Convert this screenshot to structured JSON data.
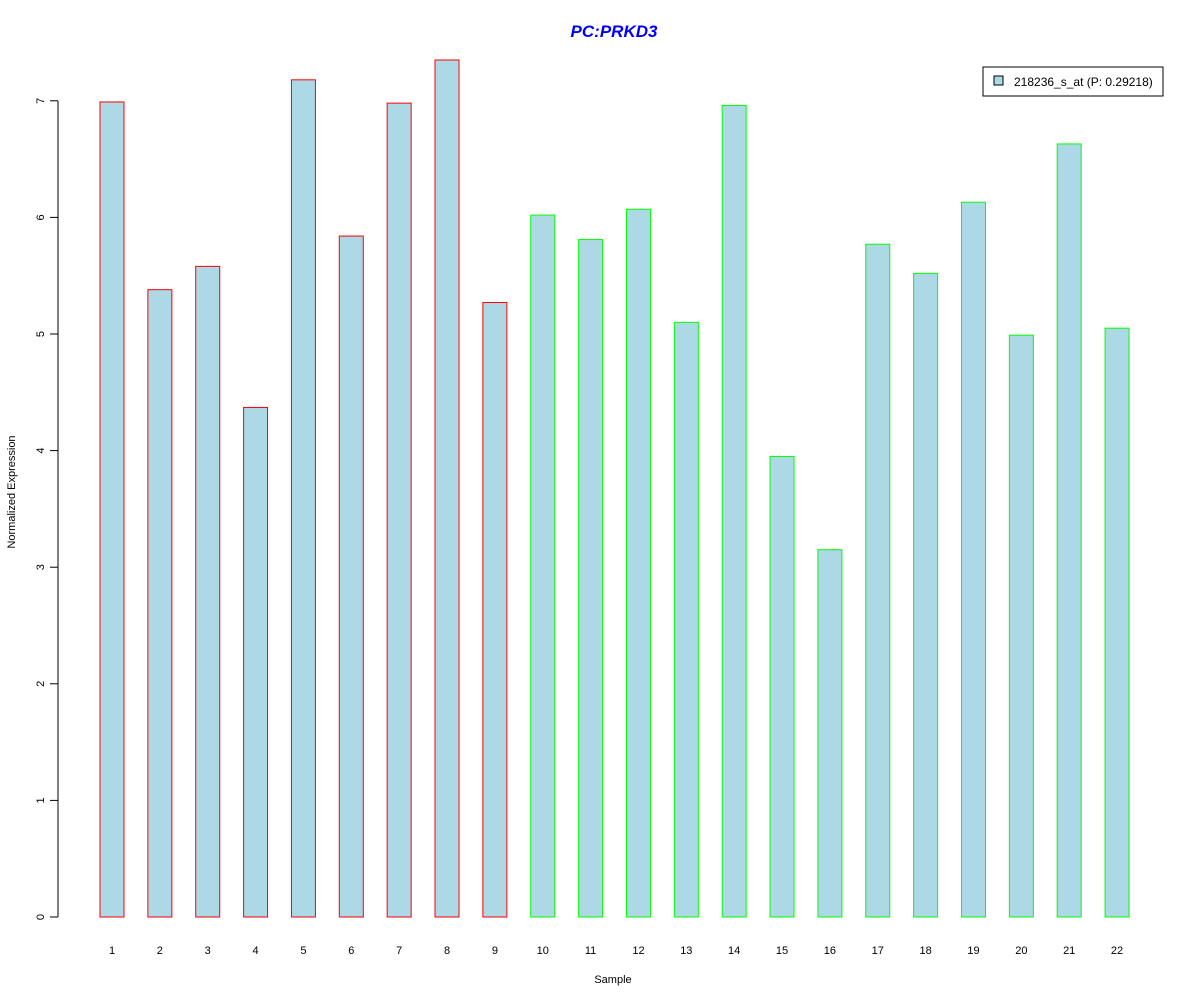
{
  "chart_data": {
    "type": "bar",
    "title": "PC:PRKD3",
    "xlabel": "Sample",
    "ylabel": "Normalized Expression",
    "categories": [
      "1",
      "2",
      "3",
      "4",
      "5",
      "6",
      "7",
      "8",
      "9",
      "10",
      "11",
      "12",
      "13",
      "14",
      "15",
      "16",
      "17",
      "18",
      "19",
      "20",
      "21",
      "22"
    ],
    "series": [
      {
        "name": "218236_s_at (P: 0.29218)",
        "values": [
          6.99,
          5.38,
          5.58,
          4.37,
          7.18,
          5.84,
          6.98,
          7.35,
          5.27,
          6.02,
          5.81,
          6.07,
          5.1,
          6.96,
          3.95,
          3.15,
          5.77,
          5.52,
          6.13,
          4.99,
          6.63,
          5.05
        ]
      }
    ],
    "yticks": [
      "0",
      "1",
      "2",
      "3",
      "4",
      "5",
      "6",
      "7"
    ],
    "ylim": [
      0,
      7.35
    ],
    "grid": false,
    "legend_position": "top-right",
    "bar_fill_color": "#add8e6",
    "group_border_colors": [
      "#ff0000",
      "#ff0000",
      "#ff0000",
      "#ff0000",
      "#ff0000",
      "#ff0000",
      "#ff0000",
      "#ff0000",
      "#ff0000",
      "#00ff00",
      "#00ff00",
      "#00ff00",
      "#00ff00",
      "#00ff00",
      "#00ff00",
      "#00ff00",
      "#00ff00",
      "#00ff00",
      "#00ff00",
      "#00ff00",
      "#00ff00",
      "#00ff00"
    ],
    "title_color": "#0000ff"
  }
}
